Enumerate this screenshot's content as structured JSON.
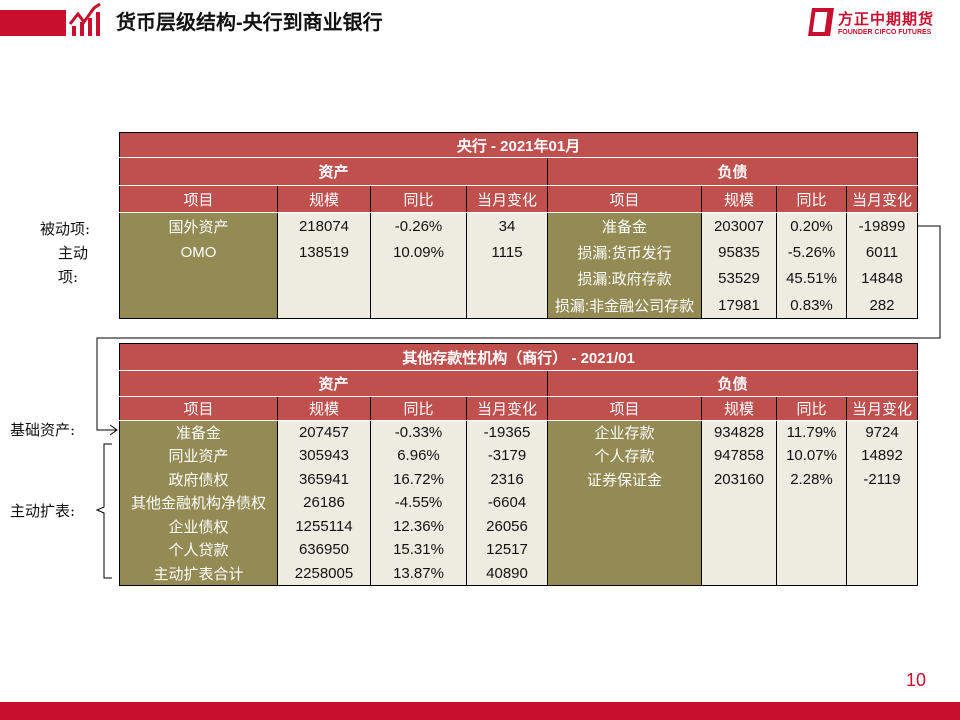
{
  "header": {
    "title": "货币层级结构-央行到商业银行",
    "logo_cn": "方正中期期货",
    "logo_en": "FOUNDER CIFCO FUTURES"
  },
  "colors": {
    "brand": "#C8102E",
    "header_red": "#C0504D",
    "olive": "#948A54",
    "light": "#EEECE1"
  },
  "table1": {
    "title": "央行 - 2021年01月",
    "assets_label": "资产",
    "liabilities_label": "负债",
    "columns": [
      "项目",
      "规模",
      "同比",
      "当月变化",
      "项目",
      "规模",
      "同比",
      "当月变化"
    ],
    "rows": [
      [
        "国外资产",
        "218074",
        "-0.26%",
        "34",
        "准备金",
        "203007",
        "0.20%",
        "-19899"
      ],
      [
        "OMO",
        "138519",
        "10.09%",
        "1115",
        "损漏:货币发行",
        "95835",
        "-5.26%",
        "6011"
      ],
      [
        "",
        "",
        "",
        "",
        "损漏:政府存款",
        "53529",
        "45.51%",
        "14848"
      ],
      [
        "",
        "",
        "",
        "",
        "损漏:非金融公司存款",
        "17981",
        "0.83%",
        "282"
      ]
    ]
  },
  "table2": {
    "title": "其他存款性机构（商行） - 2021/01",
    "assets_label": "资产",
    "liabilities_label": "负债",
    "columns": [
      "项目",
      "规模",
      "同比",
      "当月变化",
      "项目",
      "规模",
      "同比",
      "当月变化"
    ],
    "rows": [
      [
        "准备金",
        "207457",
        "-0.33%",
        "-19365",
        "企业存款",
        "934828",
        "11.79%",
        "9724"
      ],
      [
        "同业资产",
        "305943",
        "6.96%",
        "-3179",
        "个人存款",
        "947858",
        "10.07%",
        "14892"
      ],
      [
        "政府债权",
        "365941",
        "16.72%",
        "2316",
        "证券保证金",
        "203160",
        "2.28%",
        "-2119"
      ],
      [
        "其他金融机构净债权",
        "26186",
        "-4.55%",
        "-6604",
        "",
        "",
        "",
        ""
      ],
      [
        "企业债权",
        "1255114",
        "12.36%",
        "26056",
        "",
        "",
        "",
        ""
      ],
      [
        "个人贷款",
        "636950",
        "15.31%",
        "12517",
        "",
        "",
        "",
        ""
      ],
      [
        "主动扩表合计",
        "2258005",
        "13.87%",
        "40890",
        "",
        "",
        "",
        ""
      ]
    ]
  },
  "annotations": {
    "passive": "被动项:",
    "active_line1": "主动",
    "active_line2": "项:",
    "base_assets": "基础资产:",
    "active_expansion": "主动扩表:"
  },
  "page_number": "10"
}
